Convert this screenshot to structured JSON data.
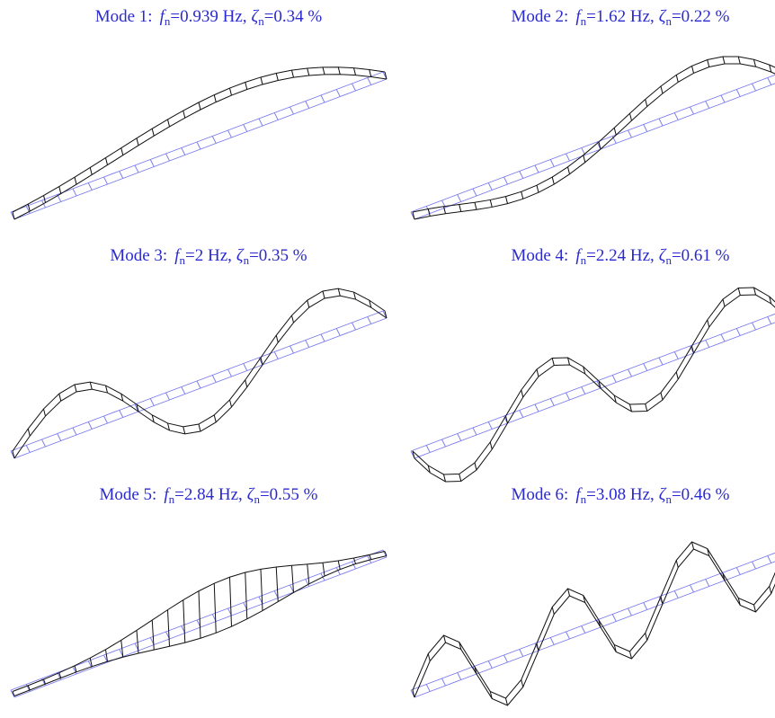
{
  "symbols": {
    "frequency": "f",
    "damping": "ζ",
    "subscript": "n",
    "equals": "=",
    "separator": ","
  },
  "panels": [
    {
      "label": "Mode 1:",
      "frequency": "0.939 Hz",
      "damping": "0.34 %"
    },
    {
      "label": "Mode 2:",
      "frequency": "1.62 Hz",
      "damping": "0.22 %"
    },
    {
      "label": "Mode 3:",
      "frequency": "2 Hz",
      "damping": "0.35 %"
    },
    {
      "label": "Mode 4:",
      "frequency": "2.24 Hz",
      "damping": "0.61 %"
    },
    {
      "label": "Mode 5:",
      "frequency": "2.84 Hz",
      "damping": "0.55 %"
    },
    {
      "label": "Mode 6:",
      "frequency": "3.08 Hz",
      "damping": "0.46 %"
    }
  ]
}
